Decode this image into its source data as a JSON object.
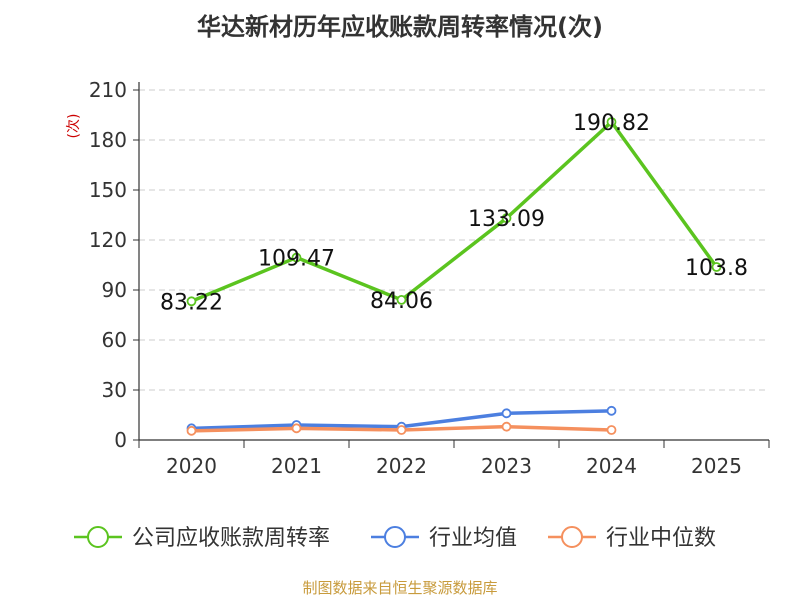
{
  "chart_data": {
    "type": "line",
    "title": "华达新材历年应收账款周转率情况(次)",
    "ylabel": "(次)",
    "xlabel": "",
    "categories": [
      "2020",
      "2021",
      "2022",
      "2023",
      "2024",
      "2025"
    ],
    "ylim": [
      0,
      210
    ],
    "yticks": [
      0,
      30,
      60,
      90,
      120,
      150,
      180,
      210
    ],
    "grid": true,
    "legend_position": "bottom",
    "series": [
      {
        "name": "公司应收账款周转率",
        "color": "#5bc41f",
        "values": [
          83.22,
          109.47,
          84.06,
          133.09,
          190.82,
          103.8
        ],
        "labels": [
          "83.22",
          "109.47",
          "84.06",
          "133.09",
          "190.82",
          "103.8"
        ]
      },
      {
        "name": "行业均值",
        "color": "#4c7fe0",
        "values": [
          7,
          9,
          8,
          16,
          17.5,
          null
        ]
      },
      {
        "name": "行业中位数",
        "color": "#f5905e",
        "values": [
          5.5,
          7,
          6,
          8,
          6,
          null
        ]
      }
    ]
  },
  "source": "制图数据来自恒生聚源数据库",
  "colors": {
    "axis": "#333333",
    "grid": "#cccccc",
    "ylabel": "#cc0000",
    "source": "#c89b3c"
  }
}
